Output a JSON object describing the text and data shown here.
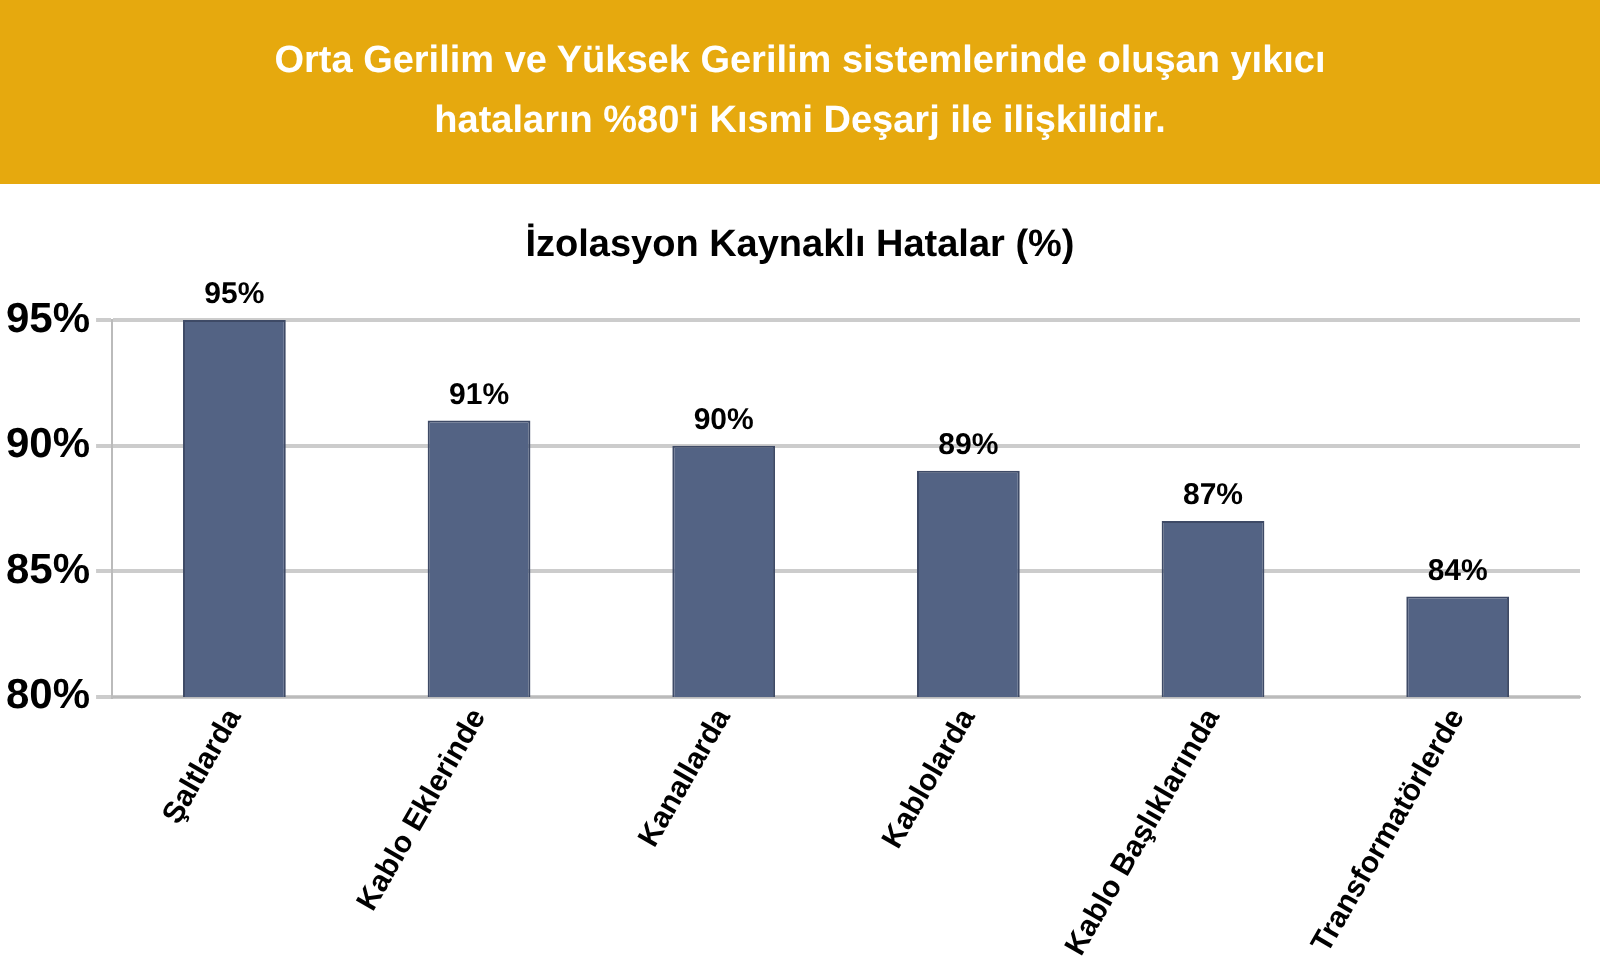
{
  "chart_data": {
    "type": "bar",
    "title": "Orta Gerilim ve Yüksek Gerilim sistemlerinde oluşan yıkıcı hataların %80'i Kısmi Deşarj ile ilişkilidir.",
    "subtitle": "İzolasyon Kaynaklı Hatalar (%)",
    "categories": [
      "Şaltlarda",
      "Kablo Eklerinde",
      "Kanallarda",
      "Kablolarda",
      "Kablo Başlıklarında",
      "Transformatörlerde"
    ],
    "values": [
      95,
      91,
      90,
      89,
      87,
      84
    ],
    "value_labels": [
      "95%",
      "91%",
      "90%",
      "89%",
      "87%",
      "84%"
    ],
    "color": "#536384",
    "ylim": [
      80,
      95
    ],
    "yticks": [
      {
        "value": 80,
        "label": "80%"
      },
      {
        "value": 85,
        "label": "85%"
      },
      {
        "value": 90,
        "label": "90%"
      },
      {
        "value": 95,
        "label": "95%"
      }
    ],
    "grid": "y"
  }
}
